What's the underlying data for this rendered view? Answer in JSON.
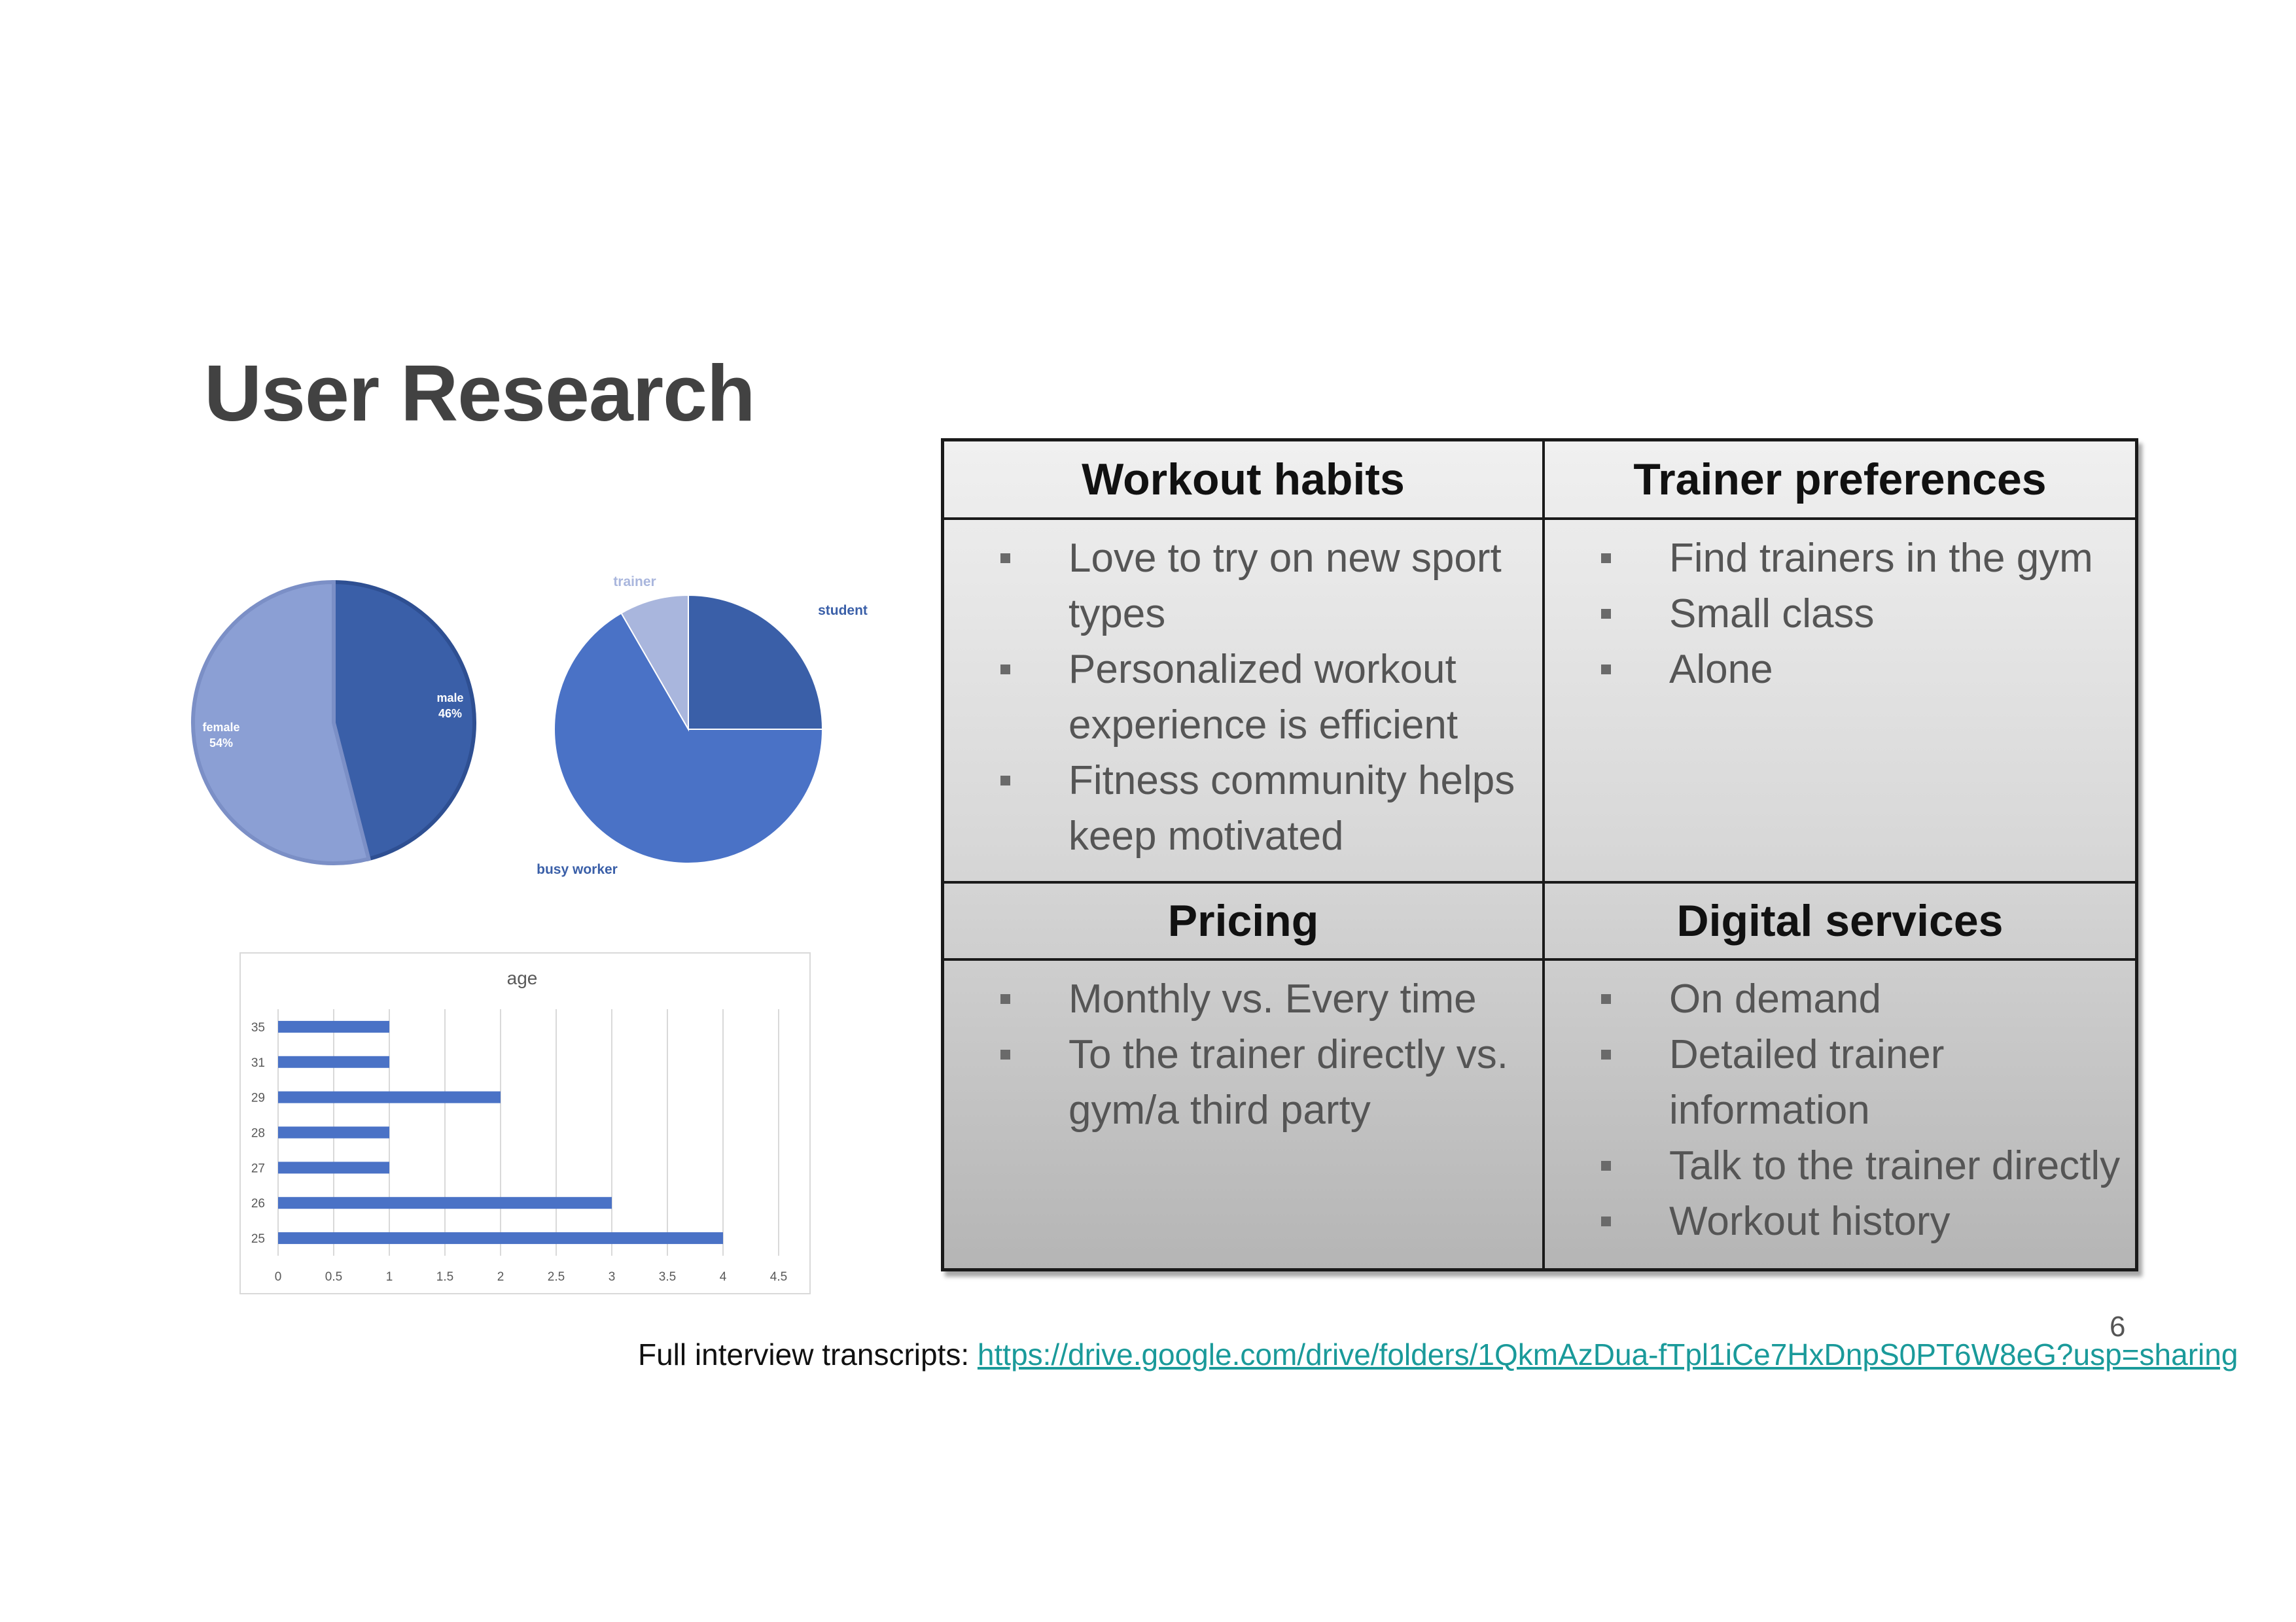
{
  "title": "User Research",
  "page_number": "6",
  "footer": {
    "label": "Full interview transcripts: ",
    "link": "https://drive.google.com/drive/folders/1QkmAzDua-fTpl1iCe7HxDnpS0PT6W8eG?usp=sharing"
  },
  "colors": {
    "dark_blue": "#3a5fa8",
    "mid_blue": "#4a72c6",
    "light_blue": "#8b9fd4",
    "pale_blue": "#a9b6dd",
    "link": "#1a9a9a"
  },
  "chart_data": [
    {
      "type": "pie",
      "slices": [
        {
          "label": "male",
          "value": 46,
          "display": "46%"
        },
        {
          "label": "female",
          "value": 54,
          "display": "54%"
        }
      ]
    },
    {
      "type": "pie",
      "slices": [
        {
          "label": "student",
          "value": 3
        },
        {
          "label": "busy worker",
          "value": 8
        },
        {
          "label": "trainer",
          "value": 1
        }
      ]
    },
    {
      "type": "bar",
      "orientation": "horizontal",
      "title": "age",
      "categories": [
        "25",
        "26",
        "27",
        "28",
        "29",
        "31",
        "35"
      ],
      "values": [
        4,
        3,
        1,
        1,
        2,
        1,
        1
      ],
      "xlim": [
        0,
        4.5
      ],
      "xticks": [
        "0",
        "0.5",
        "1",
        "1.5",
        "2",
        "2.5",
        "3",
        "3.5",
        "4",
        "4.5"
      ],
      "grid": true
    }
  ],
  "table": {
    "cells": [
      {
        "header": "Workout habits",
        "items": [
          "Love to try on new sport types",
          "Personalized workout experience is efficient",
          "Fitness community helps keep motivated"
        ]
      },
      {
        "header": "Trainer preferences",
        "items": [
          "Find trainers in the gym",
          "Small class",
          "Alone"
        ]
      },
      {
        "header": "Pricing",
        "items": [
          "Monthly vs. Every time",
          "To the trainer directly vs. gym/a third party"
        ]
      },
      {
        "header": "Digital services",
        "items": [
          "On demand",
          "Detailed trainer information",
          "Talk to the trainer directly",
          "Workout history"
        ]
      }
    ]
  }
}
